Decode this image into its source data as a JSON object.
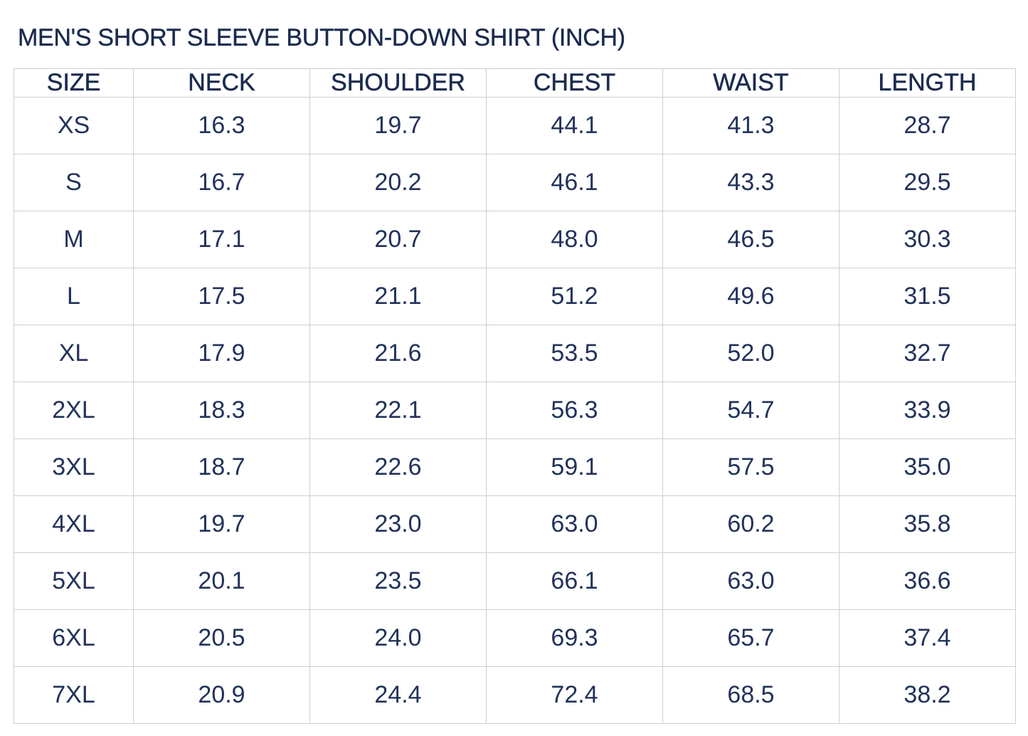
{
  "header": {
    "title": "MEN'S SHORT SLEEVE BUTTON-DOWN SHIRT (INCH)"
  },
  "table": {
    "columns": [
      "SIZE",
      "NECK",
      "SHOULDER",
      "CHEST",
      "WAIST",
      "LENGTH"
    ],
    "rows": [
      [
        "XS",
        "16.3",
        "19.7",
        "44.1",
        "41.3",
        "28.7"
      ],
      [
        "S",
        "16.7",
        "20.2",
        "46.1",
        "43.3",
        "29.5"
      ],
      [
        "M",
        "17.1",
        "20.7",
        "48.0",
        "46.5",
        "30.3"
      ],
      [
        "L",
        "17.5",
        "21.1",
        "51.2",
        "49.6",
        "31.5"
      ],
      [
        "XL",
        "17.9",
        "21.6",
        "53.5",
        "52.0",
        "32.7"
      ],
      [
        "2XL",
        "18.3",
        "22.1",
        "56.3",
        "54.7",
        "33.9"
      ],
      [
        "3XL",
        "18.7",
        "22.6",
        "59.1",
        "57.5",
        "35.0"
      ],
      [
        "4XL",
        "19.7",
        "23.0",
        "63.0",
        "60.2",
        "35.8"
      ],
      [
        "5XL",
        "20.1",
        "23.5",
        "66.1",
        "63.0",
        "36.6"
      ],
      [
        "6XL",
        "20.5",
        "24.0",
        "69.3",
        "65.7",
        "37.4"
      ],
      [
        "7XL",
        "20.9",
        "24.4",
        "72.4",
        "68.5",
        "38.2"
      ]
    ]
  }
}
